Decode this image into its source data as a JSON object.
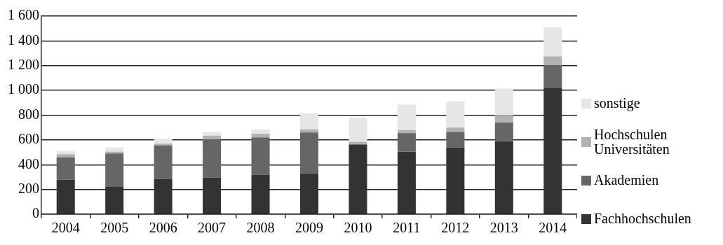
{
  "chart_data": {
    "type": "bar",
    "stacked": true,
    "categories": [
      "2004",
      "2005",
      "2006",
      "2007",
      "2008",
      "2009",
      "2010",
      "2011",
      "2012",
      "2013",
      "2014"
    ],
    "series": [
      {
        "name": "Fachhochschulen",
        "color": "#333333",
        "values": [
          280,
          220,
          285,
          295,
          320,
          330,
          560,
          505,
          540,
          590,
          1020
        ]
      },
      {
        "name": "Akademien",
        "color": "#666666",
        "values": [
          180,
          270,
          270,
          310,
          300,
          330,
          5,
          150,
          125,
          150,
          185
        ]
      },
      {
        "name": "Hochschulen Universitäten",
        "color": "#b2b2b2",
        "values": [
          25,
          15,
          15,
          30,
          30,
          25,
          20,
          25,
          35,
          60,
          70
        ]
      },
      {
        "name": "sonstige",
        "color": "#e6e6e6",
        "values": [
          25,
          35,
          40,
          30,
          35,
          130,
          195,
          205,
          210,
          215,
          235
        ]
      }
    ],
    "ylim": [
      0,
      1600
    ],
    "yticks": [
      0,
      200,
      400,
      600,
      800,
      {
        "value": 1000,
        "label": "1 000"
      },
      {
        "value": 1200,
        "label": "1 200"
      },
      {
        "value": 1400,
        "label": "1 400"
      },
      {
        "value": 1600,
        "label": "1 600"
      }
    ],
    "grid": "y",
    "legend": "right"
  }
}
